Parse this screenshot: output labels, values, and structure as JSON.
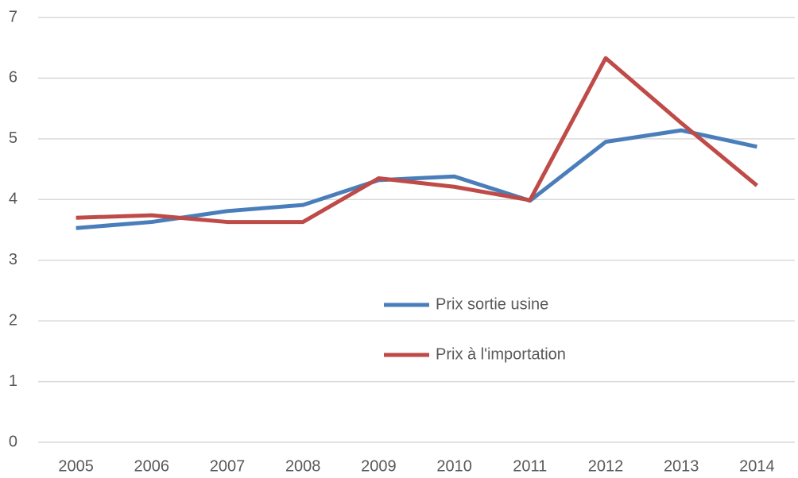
{
  "chart_data": {
    "type": "line",
    "categories": [
      "2005",
      "2006",
      "2007",
      "2008",
      "2009",
      "2010",
      "2011",
      "2012",
      "2013",
      "2014"
    ],
    "series": [
      {
        "name": "Prix sortie usine",
        "color": "#4a7ebb",
        "values": [
          3.53,
          3.63,
          3.81,
          3.91,
          4.32,
          4.38,
          3.98,
          4.95,
          5.14,
          4.87
        ]
      },
      {
        "name": "Prix à l'importation",
        "color": "#be4b48",
        "values": [
          3.7,
          3.74,
          3.63,
          3.63,
          4.35,
          4.21,
          3.99,
          6.33,
          5.26,
          4.23
        ]
      }
    ],
    "ylim": [
      0,
      7
    ],
    "yticks": [
      0,
      1,
      2,
      3,
      4,
      5,
      6,
      7
    ],
    "grid": true
  }
}
